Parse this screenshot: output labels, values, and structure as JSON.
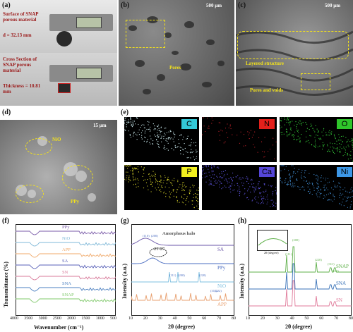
{
  "panels": {
    "a": {
      "label": "(a)",
      "surface_title": "Surface of SNAP porous material",
      "diameter": "d = 32.13 mm",
      "cross_title": "Cross Section of SNAP porous material",
      "thickness": "Thickness = 10.81 mm"
    },
    "b": {
      "label": "(b)",
      "scale": "500 μm",
      "annotation": "Pores"
    },
    "c": {
      "label": "(c)",
      "scale": "500 μm",
      "annotation_layered": "Layered structure",
      "annotation_pores": "Pores and voids"
    },
    "d": {
      "label": "(d)",
      "scale": "15 μm",
      "annotation_nio": "NiO",
      "annotation_ppy": "PPy"
    },
    "e": {
      "label": "(e)",
      "elements": [
        {
          "symbol": "C",
          "tag_color": "#33c8d6",
          "dot_color": "#cfeff3"
        },
        {
          "symbol": "N",
          "tag_color": "#e3201b",
          "dot_color": "#c2222a"
        },
        {
          "symbol": "O",
          "tag_color": "#2fc52b",
          "dot_color": "#36d13a"
        },
        {
          "symbol": "P",
          "tag_color": "#f2ef1f",
          "dot_color": "#d8d42a"
        },
        {
          "symbol": "Ca",
          "tag_color": "#5546d6",
          "dot_color": "#5f55e0"
        },
        {
          "symbol": "Ni",
          "tag_color": "#3d97e6",
          "dot_color": "#3e86c8"
        }
      ]
    },
    "f": {
      "label": "(f)",
      "ylabel": "Transmittance (%)",
      "xlabel": "Wavenumber (cm⁻¹)",
      "xticks": [
        "4000",
        "3500",
        "3000",
        "2500",
        "2000",
        "1500",
        "1000",
        "500"
      ],
      "series": [
        {
          "name": "PPy",
          "color": "#7a5aa8"
        },
        {
          "name": "NiO",
          "color": "#7fb8d8"
        },
        {
          "name": "APP",
          "color": "#f0a868"
        },
        {
          "name": "SA",
          "color": "#5a62b8"
        },
        {
          "name": "SN",
          "color": "#d87a9a"
        },
        {
          "name": "SNA",
          "color": "#4a7fc0"
        },
        {
          "name": "SNAP",
          "color": "#7fc86a"
        }
      ]
    },
    "g": {
      "label": "(g)",
      "ylabel": "Intensity (a.u.)",
      "xlabel": "2θ (degree)",
      "xticks": [
        "10",
        "20",
        "30",
        "40",
        "50",
        "60",
        "70",
        "80"
      ],
      "halo_label": "Amorphous halo",
      "halo_range": "21-27",
      "series": [
        {
          "name": "SA",
          "color": "#6a56a8"
        },
        {
          "name": "PPy",
          "color": "#4a6cc0"
        },
        {
          "name": "NiO",
          "color": "#7fc0e0"
        },
        {
          "name": "APP",
          "color": "#e8a070"
        }
      ],
      "peak_labels": [
        "(110)",
        "(200)",
        "(111)",
        "(200)",
        "(220)",
        "(311)",
        "(222)"
      ]
    },
    "h": {
      "label": "(h)",
      "ylabel": "Intensity (a.u.)",
      "xlabel": "2θ (degree)",
      "xticks": [
        "10",
        "20",
        "30",
        "40",
        "50",
        "60",
        "70",
        "80"
      ],
      "inset_ylabel": "Intensity (a.u.)",
      "inset_xlabel": "2θ (degree)",
      "series": [
        {
          "name": "SNAP",
          "color": "#5fb04a"
        },
        {
          "name": "SNA",
          "color": "#3a72b8"
        },
        {
          "name": "SN",
          "color": "#e07a9a"
        }
      ],
      "peak_labels": [
        "(111)",
        "(200)",
        "(220)",
        "(311)",
        "(222)"
      ]
    }
  }
}
